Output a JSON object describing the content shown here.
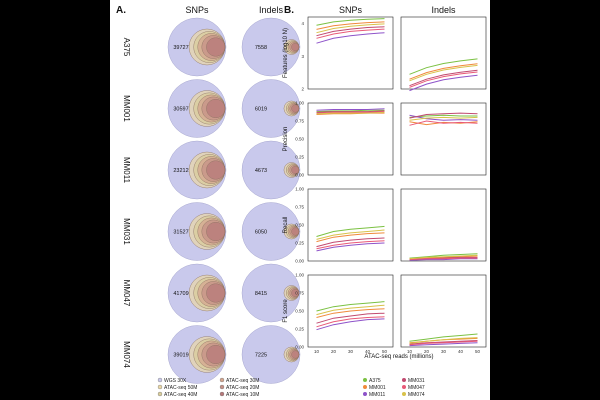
{
  "panel_a_label": "A.",
  "panel_b_label": "B.",
  "colors": {
    "background": "#000000",
    "figure": "#ffffff",
    "wgs_circle": "#c9c9ec",
    "frame": "#222222",
    "A375": "#7bc142",
    "MM001": "#f08a3c",
    "MM011": "#8e53c9",
    "MM031": "#c14a70",
    "MM047": "#e95a78",
    "MM074": "#d8c24a"
  },
  "chart_data": [
    {
      "type": "venn-overlap",
      "title": "A.",
      "columns": [
        "SNPs",
        "Indels"
      ],
      "samples": [
        "A375",
        "MM001",
        "MM011",
        "MM031",
        "MM047",
        "MM074"
      ],
      "wgs_counts": {
        "SNPs": [
          39727,
          30597,
          23212,
          31527,
          41709,
          39019
        ],
        "Indels": [
          7558,
          6019,
          4673,
          6050,
          8415,
          7225
        ]
      },
      "atac_sets": [
        {
          "name": "ATAC-seq 50M",
          "color": "#ead7a6"
        },
        {
          "name": "ATAC-seq 40M",
          "color": "#d9cc9a"
        },
        {
          "name": "ATAC-seq 30M",
          "color": "#d4a58e"
        },
        {
          "name": "ATAC-seq 20M",
          "color": "#c59087"
        },
        {
          "name": "ATAC-seq 10M",
          "color": "#b77879"
        }
      ],
      "legend": [
        "WGS 30X",
        "ATAC-seq 30M",
        "ATAC-seq 50M",
        "ATAC-seq 20M",
        "ATAC-seq 40M",
        "ATAC-seq 10M"
      ]
    },
    {
      "type": "line",
      "title": "B.",
      "columns": [
        "SNPs",
        "Indels"
      ],
      "xlabel": "ATAC-seq reads (millions)",
      "x": [
        10,
        20,
        30,
        40,
        50
      ],
      "x_ticks": [
        "10",
        "20",
        "30",
        "40",
        "50"
      ],
      "legend": [
        "A375",
        "MM001",
        "MM011",
        "MM031",
        "MM047",
        "MM074"
      ],
      "metrics": [
        {
          "ylabel": "Features (log10 N)",
          "ylim": [
            2,
            4.2
          ],
          "y_ticks": [
            "2",
            "3",
            "4"
          ],
          "snps": [
            {
              "name": "A375",
              "values": [
                3.95,
                4.05,
                4.1,
                4.13,
                4.15
              ]
            },
            {
              "name": "MM001",
              "values": [
                3.82,
                3.93,
                3.99,
                4.03,
                4.05
              ]
            },
            {
              "name": "MM011",
              "values": [
                3.4,
                3.55,
                3.63,
                3.68,
                3.72
              ]
            },
            {
              "name": "MM031",
              "values": [
                3.63,
                3.76,
                3.83,
                3.88,
                3.9
              ]
            },
            {
              "name": "MM047",
              "values": [
                3.55,
                3.68,
                3.76,
                3.8,
                3.83
              ]
            },
            {
              "name": "MM074",
              "values": [
                3.72,
                3.85,
                3.92,
                3.96,
                3.99
              ]
            }
          ],
          "indels": [
            {
              "name": "A375",
              "values": [
                2.45,
                2.65,
                2.78,
                2.86,
                2.92
              ]
            },
            {
              "name": "MM001",
              "values": [
                2.3,
                2.5,
                2.63,
                2.71,
                2.77
              ]
            },
            {
              "name": "MM011",
              "values": [
                1.95,
                2.15,
                2.28,
                2.36,
                2.42
              ]
            },
            {
              "name": "MM031",
              "values": [
                2.1,
                2.3,
                2.43,
                2.51,
                2.57
              ]
            },
            {
              "name": "MM047",
              "values": [
                2.05,
                2.25,
                2.38,
                2.46,
                2.52
              ]
            },
            {
              "name": "MM074",
              "values": [
                2.25,
                2.45,
                2.58,
                2.66,
                2.72
              ]
            }
          ]
        },
        {
          "ylabel": "Precision",
          "ylim": [
            0,
            1
          ],
          "y_ticks": [
            "0.00",
            "0.25",
            "0.50",
            "0.75",
            "1.00"
          ],
          "snps": [
            {
              "name": "A375",
              "values": [
                0.88,
                0.89,
                0.89,
                0.9,
                0.9
              ]
            },
            {
              "name": "MM001",
              "values": [
                0.84,
                0.85,
                0.85,
                0.86,
                0.86
              ]
            },
            {
              "name": "MM011",
              "values": [
                0.9,
                0.91,
                0.91,
                0.91,
                0.92
              ]
            },
            {
              "name": "MM031",
              "values": [
                0.87,
                0.88,
                0.88,
                0.88,
                0.89
              ]
            },
            {
              "name": "MM047",
              "values": [
                0.86,
                0.87,
                0.87,
                0.87,
                0.88
              ]
            },
            {
              "name": "MM074",
              "values": [
                0.85,
                0.86,
                0.86,
                0.86,
                0.87
              ]
            }
          ],
          "indels": [
            {
              "name": "A375",
              "values": [
                0.8,
                0.82,
                0.83,
                0.82,
                0.82
              ]
            },
            {
              "name": "MM001",
              "values": [
                0.74,
                0.7,
                0.73,
                0.72,
                0.74
              ]
            },
            {
              "name": "MM011",
              "values": [
                0.83,
                0.78,
                0.76,
                0.77,
                0.76
              ]
            },
            {
              "name": "MM031",
              "values": [
                0.79,
                0.84,
                0.85,
                0.86,
                0.85
              ]
            },
            {
              "name": "MM047",
              "values": [
                0.69,
                0.75,
                0.72,
                0.73,
                0.72
              ]
            },
            {
              "name": "MM074",
              "values": [
                0.76,
                0.79,
                0.8,
                0.79,
                0.8
              ]
            }
          ]
        },
        {
          "ylabel": "Recall",
          "ylim": [
            0,
            1
          ],
          "y_ticks": [
            "0.00",
            "0.25",
            "0.50",
            "0.75",
            "1.00"
          ],
          "snps": [
            {
              "name": "A375",
              "values": [
                0.34,
                0.41,
                0.44,
                0.46,
                0.48
              ]
            },
            {
              "name": "MM001",
              "values": [
                0.27,
                0.33,
                0.36,
                0.38,
                0.39
              ]
            },
            {
              "name": "MM011",
              "values": [
                0.14,
                0.19,
                0.22,
                0.24,
                0.25
              ]
            },
            {
              "name": "MM031",
              "values": [
                0.2,
                0.26,
                0.29,
                0.31,
                0.32
              ]
            },
            {
              "name": "MM047",
              "values": [
                0.17,
                0.22,
                0.25,
                0.27,
                0.28
              ]
            },
            {
              "name": "MM074",
              "values": [
                0.3,
                0.36,
                0.39,
                0.41,
                0.43
              ]
            }
          ],
          "indels": [
            {
              "name": "A375",
              "values": [
                0.04,
                0.06,
                0.08,
                0.09,
                0.1
              ]
            },
            {
              "name": "MM001",
              "values": [
                0.03,
                0.04,
                0.05,
                0.06,
                0.07
              ]
            },
            {
              "name": "MM011",
              "values": [
                0.01,
                0.02,
                0.02,
                0.03,
                0.03
              ]
            },
            {
              "name": "MM031",
              "values": [
                0.02,
                0.03,
                0.04,
                0.05,
                0.05
              ]
            },
            {
              "name": "MM047",
              "values": [
                0.02,
                0.03,
                0.03,
                0.04,
                0.04
              ]
            },
            {
              "name": "MM074",
              "values": [
                0.03,
                0.05,
                0.06,
                0.07,
                0.08
              ]
            }
          ]
        },
        {
          "ylabel": "F1 score",
          "ylim": [
            0,
            1
          ],
          "y_ticks": [
            "0.00",
            "0.25",
            "0.50",
            "0.75",
            "1.00"
          ],
          "snps": [
            {
              "name": "A375",
              "values": [
                0.5,
                0.56,
                0.59,
                0.61,
                0.63
              ]
            },
            {
              "name": "MM001",
              "values": [
                0.41,
                0.47,
                0.5,
                0.52,
                0.53
              ]
            },
            {
              "name": "MM011",
              "values": [
                0.24,
                0.31,
                0.35,
                0.38,
                0.39
              ]
            },
            {
              "name": "MM031",
              "values": [
                0.33,
                0.4,
                0.43,
                0.46,
                0.47
              ]
            },
            {
              "name": "MM047",
              "values": [
                0.28,
                0.35,
                0.39,
                0.41,
                0.42
              ]
            },
            {
              "name": "MM074",
              "values": [
                0.45,
                0.51,
                0.54,
                0.56,
                0.58
              ]
            }
          ],
          "indels": [
            {
              "name": "A375",
              "values": [
                0.08,
                0.11,
                0.14,
                0.16,
                0.18
              ]
            },
            {
              "name": "MM001",
              "values": [
                0.06,
                0.08,
                0.1,
                0.11,
                0.12
              ]
            },
            {
              "name": "MM011",
              "values": [
                0.02,
                0.03,
                0.04,
                0.05,
                0.06
              ]
            },
            {
              "name": "MM031",
              "values": [
                0.04,
                0.06,
                0.07,
                0.08,
                0.09
              ]
            },
            {
              "name": "MM047",
              "values": [
                0.03,
                0.05,
                0.06,
                0.07,
                0.08
              ]
            },
            {
              "name": "MM074",
              "values": [
                0.05,
                0.08,
                0.1,
                0.12,
                0.13
              ]
            }
          ]
        }
      ]
    }
  ]
}
